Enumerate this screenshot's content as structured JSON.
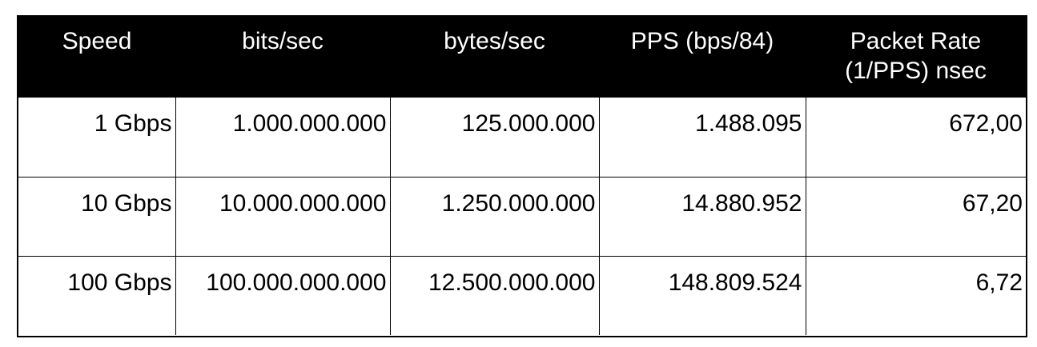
{
  "table": {
    "headers": [
      "Speed",
      "bits/sec",
      "bytes/sec",
      "PPS (bps/84)",
      "Packet Rate (1/PPS) nsec"
    ],
    "rows": [
      [
        "1 Gbps",
        "1.000.000.000",
        "125.000.000",
        "1.488.095",
        "672,00"
      ],
      [
        "10 Gbps",
        "10.000.000.000",
        "1.250.000.000",
        "14.880.952",
        "67,20"
      ],
      [
        "100 Gbps",
        "100.000.000.000",
        "12.500.000.000",
        "148.809.524",
        "6,72"
      ]
    ]
  }
}
